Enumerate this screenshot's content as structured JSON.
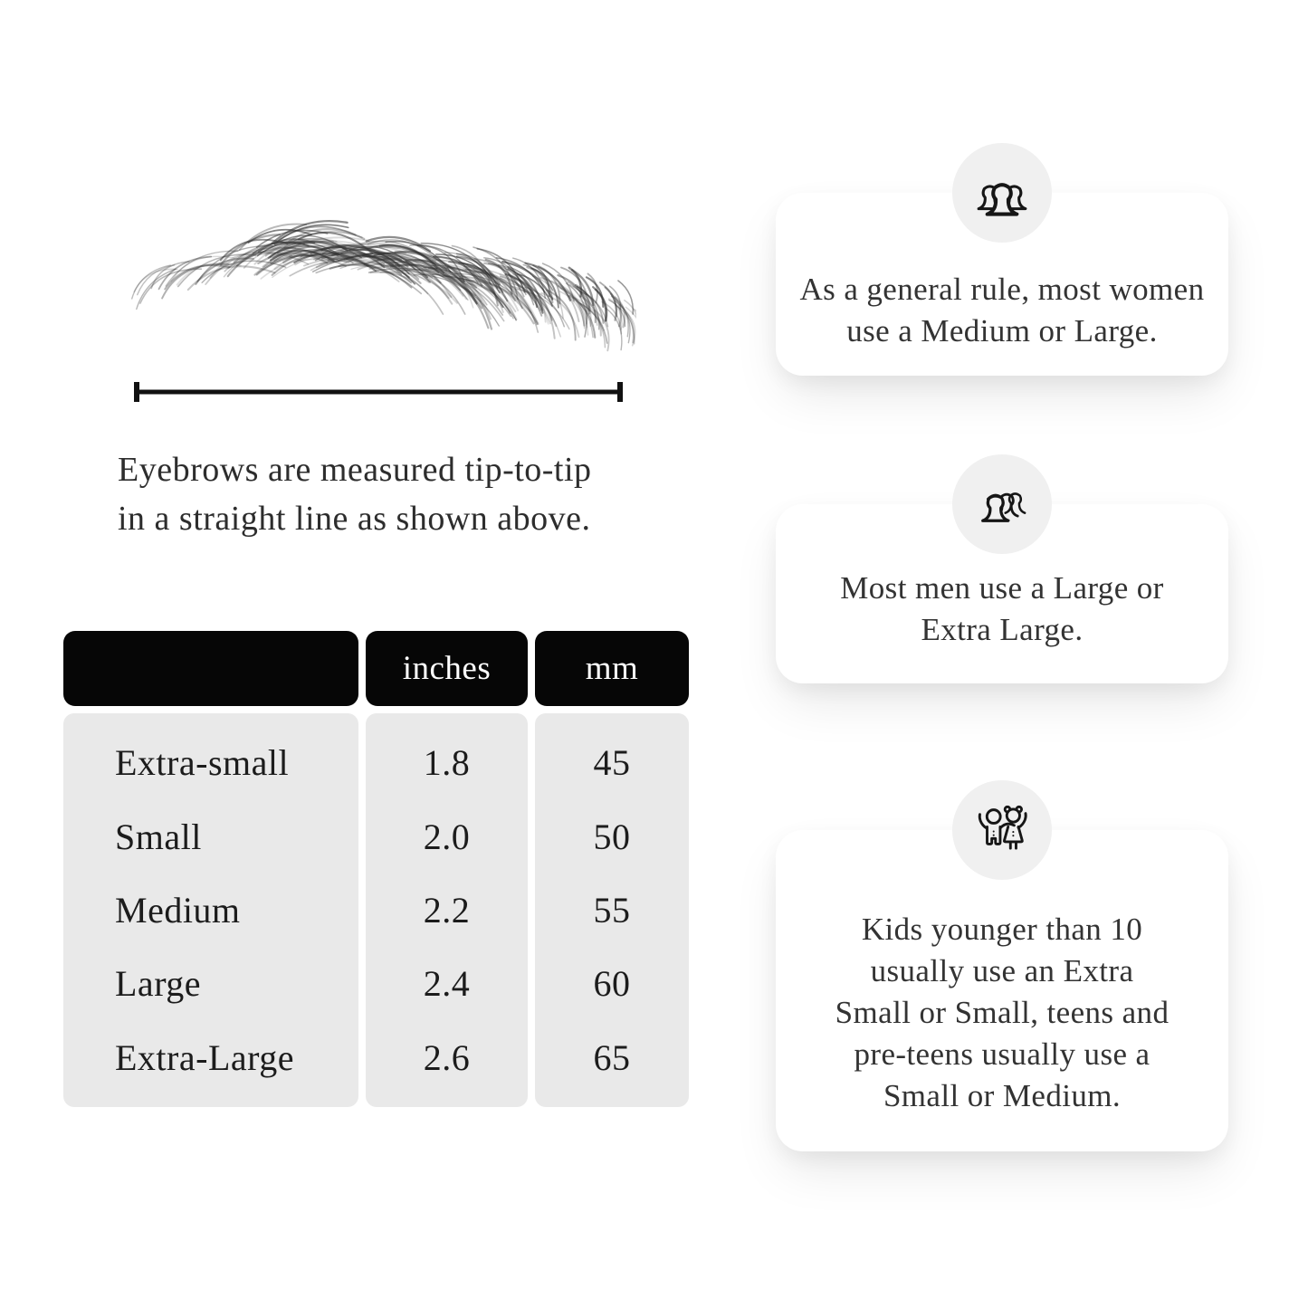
{
  "measurement": {
    "caption_lines": [
      "Eyebrows are measured tip-to-tip",
      "in a straight line as shown above."
    ]
  },
  "size_table": {
    "headers": {
      "size": "",
      "inches": "inches",
      "mm": "mm"
    },
    "rows": [
      {
        "size": "Extra-small",
        "inches": "1.8",
        "mm": "45"
      },
      {
        "size": "Small",
        "inches": "2.0",
        "mm": "50"
      },
      {
        "size": "Medium",
        "inches": "2.2",
        "mm": "55"
      },
      {
        "size": "Large",
        "inches": "2.4",
        "mm": "60"
      },
      {
        "size": "Extra-Large",
        "inches": "2.6",
        "mm": "65"
      }
    ]
  },
  "tips": [
    {
      "icon": "group-of-women-icon",
      "lines": [
        "As a general rule, most women",
        "use a Medium or Large."
      ]
    },
    {
      "icon": "group-of-men-icon",
      "lines": [
        "Most men use a Large or",
        "Extra Large."
      ]
    },
    {
      "icon": "kids-icon",
      "lines": [
        "Kids younger than 10",
        "usually use an Extra",
        "Small or Small, teens and",
        "pre-teens usually use a",
        "Small or Medium."
      ]
    }
  ],
  "colors": {
    "background": "#ffffff",
    "table_header_bg": "#060606",
    "table_header_text": "#ffffff",
    "table_body_bg": "#e9e9e9",
    "icon_circle_bg": "#f0f0f0",
    "text": "#2d2d2d"
  }
}
